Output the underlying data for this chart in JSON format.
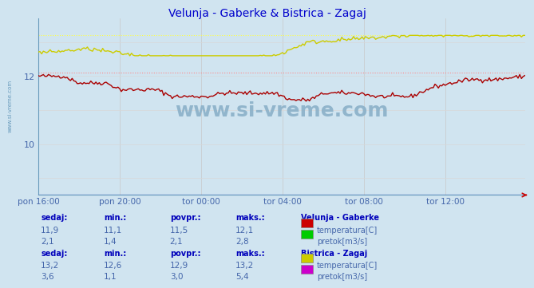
{
  "title": "Velunja - Gaberke & Bistrica - Zagaj",
  "title_color": "#0000cc",
  "background_color": "#d0e4f0",
  "plot_bg_color": "#d0e4f0",
  "x_labels": [
    "pon 16:00",
    "pon 20:00",
    "tor 00:00",
    "tor 04:00",
    "tor 08:00",
    "tor 12:00"
  ],
  "x_ticks_pos": [
    0,
    48,
    96,
    144,
    192,
    240
  ],
  "n_points": 288,
  "ylim": [
    8.5,
    13.7
  ],
  "ytick_vals": [
    10,
    12
  ],
  "grid_color_major": "#c8c8c8",
  "grid_color_minor": "#d8d8d8",
  "watermark": "www.si-vreme.com",
  "watermark_color": "#8ab0c8",
  "series": {
    "vel_temp": {
      "color": "#aa0000",
      "min": 11.1,
      "max": 12.1,
      "avg": 11.5,
      "curr": 11.9,
      "dotted_color": "#ff8888"
    },
    "vel_pretok": {
      "color": "#008800",
      "min": 1.4,
      "max": 2.8,
      "avg": 2.1,
      "curr": 2.1,
      "dotted_color": "#88ff88"
    },
    "bis_temp": {
      "color": "#cccc00",
      "min": 12.6,
      "max": 13.2,
      "avg": 12.9,
      "curr": 13.2,
      "dotted_color": "#ffff44"
    },
    "bis_pretok": {
      "color": "#cc00cc",
      "min": 1.1,
      "max": 5.4,
      "avg": 3.0,
      "curr": 3.6,
      "dotted_color": "#ff66ff"
    }
  },
  "table_label_color": "#4466aa",
  "table_value_color": "#4466aa",
  "table_header_color": "#0000bb",
  "legend_colors": {
    "vel_temp": "#cc0000",
    "vel_pretok": "#00cc00",
    "bis_temp": "#cccc00",
    "bis_pretok": "#cc00cc"
  },
  "sidebar_text": "www.si-vreme.com",
  "sidebar_color": "#6699bb",
  "border_color": "#6699bb",
  "arrow_color": "#cc0000"
}
